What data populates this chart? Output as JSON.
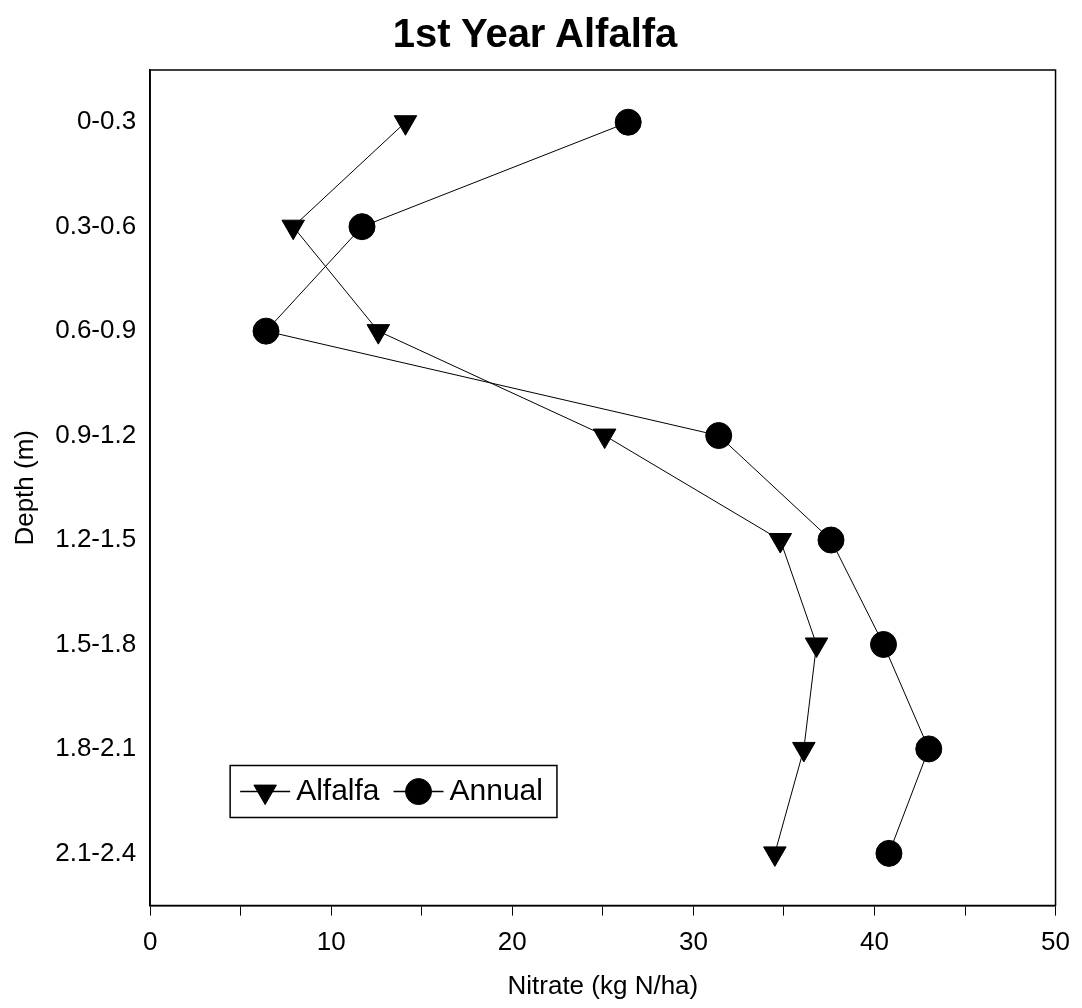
{
  "chart_data": {
    "type": "line",
    "title": "1st Year Alfalfa",
    "xlabel": "Nitrate (kg N/ha)",
    "ylabel": "Depth (m)",
    "categories": [
      "0-0.3",
      "0.3-0.6",
      "0.6-0.9",
      "0.9-1.2",
      "1.2-1.5",
      "1.5-1.8",
      "1.8-2.1",
      "2.1-2.4"
    ],
    "orientation": "horizontal",
    "xlim": [
      0,
      50
    ],
    "xticks": [
      0,
      {
        "value": 5,
        "label": null
      },
      10,
      {
        "value": 15,
        "label": null
      },
      20,
      {
        "value": 25,
        "label": null
      },
      30,
      {
        "value": 35,
        "label": null
      },
      40,
      {
        "value": 45,
        "label": null
      },
      50
    ],
    "series": [
      {
        "name": "Alfalfa",
        "color": "#000000",
        "marker": "triangle",
        "values": [
          14.1,
          7.9,
          12.6,
          25.1,
          34.8,
          36.8,
          36.1,
          34.5
        ]
      },
      {
        "name": "Annual",
        "color": "#000000",
        "marker": "circle",
        "values": [
          26.4,
          11.7,
          6.4,
          31.4,
          37.6,
          40.5,
          43.0,
          40.8
        ]
      }
    ],
    "grid": false,
    "legend": "bottom left",
    "line_style": "solid"
  }
}
